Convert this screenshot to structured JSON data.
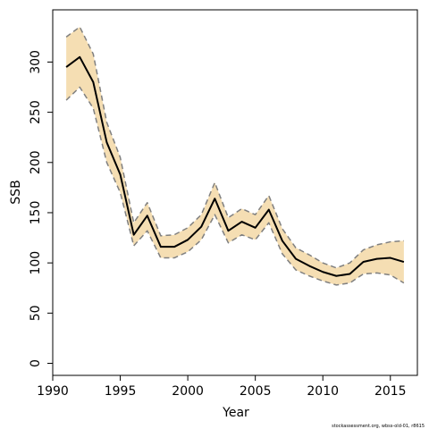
{
  "chart_data": {
    "type": "line",
    "xlabel": "Year",
    "ylabel": "SSB",
    "xlim": [
      1990,
      2017
    ],
    "ylim": [
      -12,
      352
    ],
    "xticks": [
      1990,
      1995,
      2000,
      2005,
      2010,
      2015
    ],
    "yticks": [
      0,
      50,
      100,
      150,
      200,
      250,
      300
    ],
    "credit": "stockassessment.org, wbss-old-01, r8615",
    "colors": {
      "band": "#F5DEB3",
      "bound_line": "#808080",
      "estimate_line": "#000000"
    },
    "x": [
      1991,
      1992,
      1993,
      1994,
      1995,
      1996,
      1997,
      1998,
      1999,
      2000,
      2001,
      2002,
      2003,
      2004,
      2005,
      2006,
      2007,
      2008,
      2009,
      2010,
      2011,
      2012,
      2013,
      2014,
      2015,
      2016
    ],
    "series": [
      {
        "role": "estimate",
        "values": [
          295,
          305,
          280,
          220,
          188,
          128,
          147,
          116,
          116,
          123,
          136,
          164,
          132,
          141,
          135,
          153,
          122,
          104,
          97,
          91,
          87,
          89,
          101,
          104,
          105,
          101
        ]
      },
      {
        "role": "upper",
        "values": [
          325,
          335,
          308,
          240,
          205,
          140,
          160,
          127,
          128,
          135,
          148,
          180,
          145,
          154,
          148,
          167,
          134,
          115,
          108,
          100,
          95,
          100,
          113,
          118,
          121,
          122
        ]
      },
      {
        "role": "lower",
        "values": [
          262,
          275,
          254,
          200,
          170,
          117,
          132,
          105,
          105,
          111,
          123,
          148,
          120,
          128,
          123,
          140,
          109,
          93,
          87,
          82,
          78,
          80,
          89,
          90,
          88,
          80
        ]
      }
    ]
  }
}
